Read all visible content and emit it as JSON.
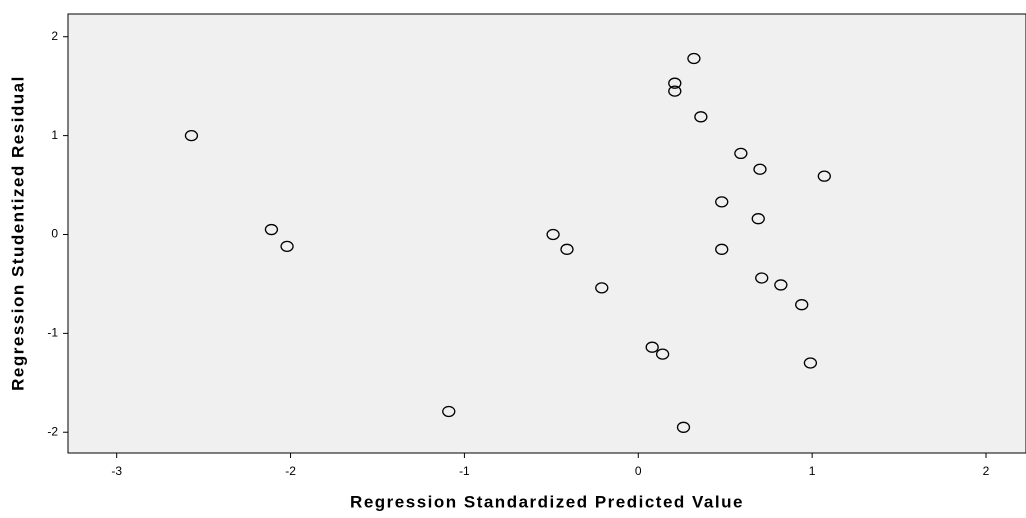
{
  "chart_data": {
    "type": "scatter",
    "xlabel": "Regression Standardized Predicted Value",
    "ylabel": "Regression Studentized Residual",
    "x": [
      -2.57,
      -2.11,
      -2.02,
      -1.09,
      -0.49,
      -0.41,
      -0.21,
      0.08,
      0.14,
      0.21,
      0.21,
      0.26,
      0.32,
      0.36,
      0.48,
      0.48,
      0.59,
      0.69,
      0.7,
      0.71,
      0.82,
      0.94,
      0.99,
      1.07
    ],
    "values": [
      1.0,
      0.05,
      -0.12,
      -1.79,
      0.0,
      -0.15,
      -0.54,
      -1.14,
      -1.21,
      1.45,
      1.53,
      -1.95,
      1.78,
      1.19,
      0.33,
      -0.15,
      0.82,
      0.16,
      0.66,
      -0.44,
      -0.51,
      -0.71,
      -1.3,
      0.59
    ],
    "color": "#000000",
    "background": "#f0f0f0",
    "xlim": [
      -3.28,
      2.23
    ],
    "xticks": [
      -3,
      -2,
      -1,
      0,
      1,
      2
    ],
    "ylim": [
      -2.21,
      2.23
    ],
    "yticks": [
      -2,
      -1,
      0,
      1,
      2
    ]
  }
}
